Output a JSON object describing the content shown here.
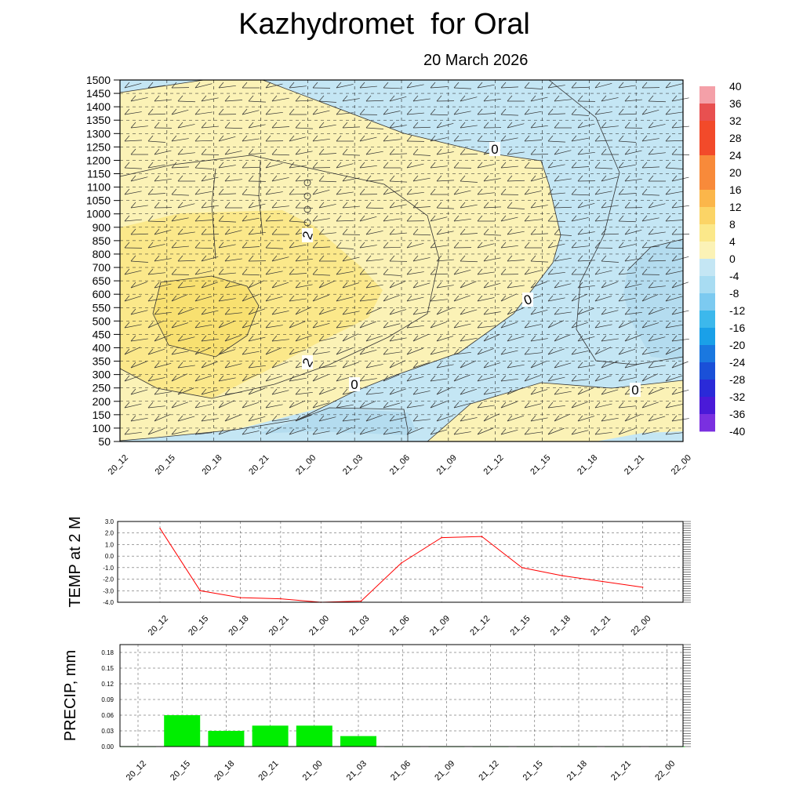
{
  "page": {
    "title": "Kazhydromet  for Oral",
    "date": "20 March 2026"
  },
  "chart_data": [
    {
      "type": "heatmap",
      "name": "vertical-section",
      "x_ticks": [
        "20_12",
        "20_15",
        "20_18",
        "20_21",
        "21_00",
        "21_03",
        "21_06",
        "21_09",
        "21_12",
        "21_15",
        "21_18",
        "21_21",
        "22_00"
      ],
      "y_ticks": [
        1500,
        1450,
        1400,
        1350,
        1300,
        1250,
        1200,
        1150,
        1100,
        1050,
        1000,
        900,
        850,
        800,
        700,
        650,
        600,
        550,
        500,
        450,
        400,
        350,
        300,
        250,
        200,
        150,
        100,
        50
      ],
      "colorbar_labels": [
        40,
        36,
        32,
        28,
        24,
        20,
        16,
        12,
        8,
        4,
        0,
        -4,
        -8,
        -12,
        -16,
        -20,
        -24,
        -28,
        -32,
        -36,
        -40
      ],
      "contour_labels": [
        "0",
        "2",
        "2",
        "0",
        "0",
        "0"
      ],
      "colors": {
        "warm_light": "#fbf2b6",
        "warm_mid": "#fbe88a",
        "warm_core": "#f8e070",
        "cold_light": "#c4e6f4",
        "cold_mid": "#b4dcef"
      }
    },
    {
      "type": "line",
      "name": "temp-2m",
      "ylabel": "TEMP at 2 M",
      "ylim": [
        -4.0,
        3.0
      ],
      "y_ticks": [
        "3.0",
        "2.0",
        "1.0",
        "0.0",
        "-1.0",
        "-2.0",
        "-3.0",
        "-4.0"
      ],
      "categories": [
        "20_12",
        "20_15",
        "20_18",
        "20_21",
        "21_00",
        "21_03",
        "21_06",
        "21_09",
        "21_12",
        "21_15",
        "21_18",
        "21_21",
        "22_00"
      ],
      "values": [
        2.4,
        -3.0,
        -3.6,
        -3.7,
        -4.0,
        -3.9,
        -0.6,
        1.6,
        1.7,
        -1.0,
        -1.7,
        -2.2,
        -2.7
      ],
      "line_color": "#ff0000"
    },
    {
      "type": "bar",
      "name": "precip",
      "ylabel": "PRECIP, mm",
      "ylim": [
        0,
        0.195
      ],
      "y_ticks": [
        "0.18",
        "0.15",
        "0.12",
        "0.09",
        "0.06",
        "0.03",
        "0.00"
      ],
      "categories": [
        "20_12",
        "20_15",
        "20_18",
        "20_21",
        "21_00",
        "21_03",
        "21_06",
        "21_09",
        "21_12",
        "21_15",
        "21_18",
        "21_21",
        "22_00"
      ],
      "values": [
        0,
        0.06,
        0.03,
        0.04,
        0.04,
        0.02,
        0,
        0,
        0,
        0,
        0,
        0,
        0
      ],
      "bar_color": "#00ee00"
    }
  ]
}
